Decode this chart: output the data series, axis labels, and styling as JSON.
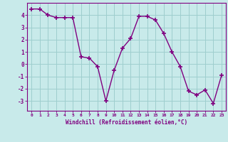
{
  "x": [
    0,
    1,
    2,
    3,
    4,
    5,
    6,
    7,
    8,
    9,
    10,
    11,
    12,
    13,
    14,
    15,
    16,
    17,
    18,
    19,
    20,
    21,
    22,
    23
  ],
  "y": [
    4.5,
    4.5,
    4.0,
    3.8,
    3.8,
    3.8,
    0.6,
    0.5,
    -0.2,
    -3.0,
    -0.5,
    1.3,
    2.1,
    3.9,
    3.9,
    3.6,
    2.5,
    1.0,
    -0.2,
    -2.2,
    -2.5,
    -2.1,
    -3.2,
    -0.9
  ],
  "line_color": "#800080",
  "marker_color": "#800080",
  "bg_color": "#c8eaea",
  "grid_color": "#9ecece",
  "xlabel": "Windchill (Refroidissement éolien,°C)",
  "xlabel_color": "#800080",
  "xlim": [
    -0.5,
    23.5
  ],
  "ylim": [
    -3.8,
    5.0
  ],
  "yticks": [
    -3,
    -2,
    -1,
    0,
    1,
    2,
    3,
    4
  ],
  "xtick_labels": [
    "0",
    "1",
    "2",
    "3",
    "4",
    "5",
    "6",
    "7",
    "8",
    "9",
    "10",
    "11",
    "12",
    "13",
    "14",
    "15",
    "16",
    "17",
    "18",
    "19",
    "20",
    "21",
    "22",
    "23"
  ],
  "tick_color": "#800080",
  "spine_color": "#800080",
  "line_width": 1.0,
  "marker_size": 4
}
